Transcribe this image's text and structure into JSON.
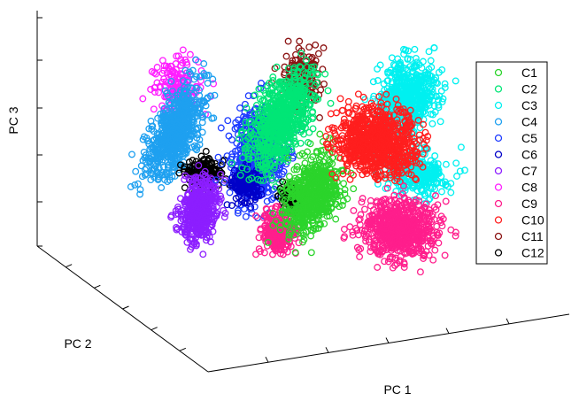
{
  "chart_data": {
    "type": "scatter",
    "projection": "3d",
    "title": "",
    "xlabel": "PC 1",
    "ylabel": "PC 2",
    "zlabel": "PC 3",
    "grid": false,
    "legend_position": "right",
    "marker": "circle (open)",
    "series": [
      {
        "name": "C1",
        "color": "#2bd42b"
      },
      {
        "name": "C2",
        "color": "#00e676"
      },
      {
        "name": "C3",
        "color": "#00f0f0"
      },
      {
        "name": "C4",
        "color": "#1ea0f0"
      },
      {
        "name": "C5",
        "color": "#1e3cff"
      },
      {
        "name": "C6",
        "color": "#0000c8"
      },
      {
        "name": "C7",
        "color": "#8c1eff"
      },
      {
        "name": "C8",
        "color": "#ff1eff"
      },
      {
        "name": "C9",
        "color": "#ff1e8c"
      },
      {
        "name": "C10",
        "color": "#ff1e1e"
      },
      {
        "name": "C11",
        "color": "#8c1414"
      },
      {
        "name": "C12",
        "color": "#000000"
      }
    ]
  }
}
